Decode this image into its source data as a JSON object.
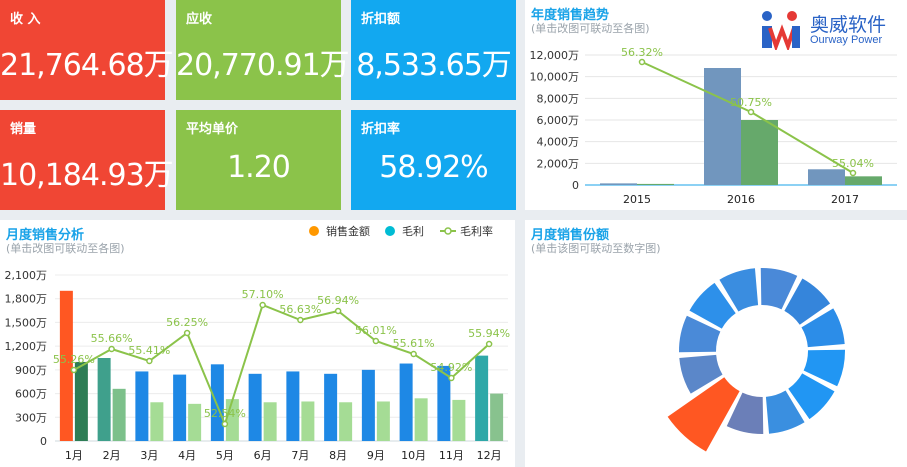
{
  "kpis": [
    {
      "label": "收 入",
      "value": "21,764.68万",
      "color": "#f04634"
    },
    {
      "label": "应收",
      "value": "20,770.91万",
      "color": "#8bc34a"
    },
    {
      "label": "折扣额",
      "value": "8,533.65万",
      "color": "#12a8f0"
    },
    {
      "label": "销量",
      "value": "10,184.93万",
      "color": "#f04634"
    },
    {
      "label": "平均单价",
      "value": "1.20",
      "color": "#8bc34a"
    },
    {
      "label": "折扣率",
      "value": "58.92%",
      "color": "#12a8f0"
    }
  ],
  "logo": {
    "cn": "奥威软件",
    "en": "Ourway Power"
  },
  "annual": {
    "title": "年度销售趋势",
    "subtitle": "(单击改图可联动至各图)"
  },
  "monthly": {
    "title": "月度销售分析",
    "subtitle": "(单击改图可联动至各图)"
  },
  "share": {
    "title": "月度销售份额",
    "subtitle": "(单击该图可联动至数字图)"
  },
  "chart_data": [
    {
      "type": "bar",
      "title": "年度销售趋势",
      "categories": [
        "2015",
        "2016",
        "2017"
      ],
      "series": [
        {
          "values": [
            150,
            10800,
            1450
          ],
          "color": "#7196be"
        },
        {
          "values": [
            100,
            6000,
            800
          ],
          "color": "#66a96b"
        },
        {
          "values": [
            56.32,
            50.75,
            55.04
          ],
          "color": "#8bc34a",
          "kind": "line",
          "labels": [
            "56.32%",
            "50.75%",
            "55.04%"
          ]
        }
      ],
      "yticks": [
        "0",
        "2,000万",
        "4,000万",
        "6,000万",
        "8,000万",
        "10,000万",
        "12,000万"
      ],
      "ylim": [
        0,
        12000
      ]
    },
    {
      "type": "bar",
      "title": "月度销售分析",
      "categories": [
        "1月",
        "2月",
        "3月",
        "4月",
        "5月",
        "6月",
        "7月",
        "8月",
        "9月",
        "10月",
        "11月",
        "12月"
      ],
      "series": [
        {
          "name": "销售金额",
          "values": [
            1900,
            1050,
            880,
            840,
            970,
            850,
            880,
            850,
            900,
            980,
            950,
            1080
          ],
          "colors": [
            "#ff5722",
            "#3fa08c",
            "#1e88e5",
            "#1e88e5",
            "#1e88e5",
            "#1e88e5",
            "#1e88e5",
            "#1e88e5",
            "#1e88e5",
            "#1e88e5",
            "#1e88e5",
            "#2ea8a8"
          ]
        },
        {
          "name": "毛利",
          "values": [
            1000,
            660,
            490,
            470,
            530,
            490,
            500,
            490,
            500,
            540,
            520,
            600
          ],
          "colors": [
            "#2e7d55",
            "#7cc08a",
            "#a5dc95",
            "#a5dc95",
            "#a5dc95",
            "#a5dc95",
            "#a5dc95",
            "#a5dc95",
            "#a5dc95",
            "#a5dc95",
            "#a5dc95",
            "#88c28e"
          ]
        },
        {
          "name": "毛利率",
          "kind": "line",
          "values": [
            55.26,
            55.66,
            55.41,
            56.25,
            52.54,
            57.1,
            56.63,
            56.94,
            56.01,
            55.61,
            54.92,
            55.94
          ],
          "labels": [
            "55.26%",
            "55.66%",
            "55.41%",
            "56.25%",
            "52.54%",
            "57.10%",
            "56.63%",
            "56.94%",
            "56.01%",
            "55.61%",
            "54.92%",
            "55.94%"
          ]
        }
      ],
      "yticks": [
        "0",
        "300万",
        "600万",
        "900万",
        "1,200万",
        "1,500万",
        "1,800万",
        "2,100万"
      ],
      "ylim": [
        0,
        2100
      ],
      "legend_colors": [
        "#ff9800",
        "#00bcd4",
        "#8bc34a"
      ]
    },
    {
      "type": "pie",
      "title": "月度销售份额",
      "values": [
        8.7,
        8.7,
        8.7,
        8.7,
        8.7,
        8.7,
        8.7,
        8.7,
        8.7,
        8.7,
        8.7,
        8.7
      ],
      "colors": [
        "#4a89d8",
        "#3585db",
        "#2c8de8",
        "#2196f3",
        "#2196f3",
        "#3a8fe0",
        "#6b7fb8",
        "#ff5722",
        "#5b87c9",
        "#4a8ad8",
        "#2d90ea",
        "#3a8de0"
      ]
    }
  ]
}
